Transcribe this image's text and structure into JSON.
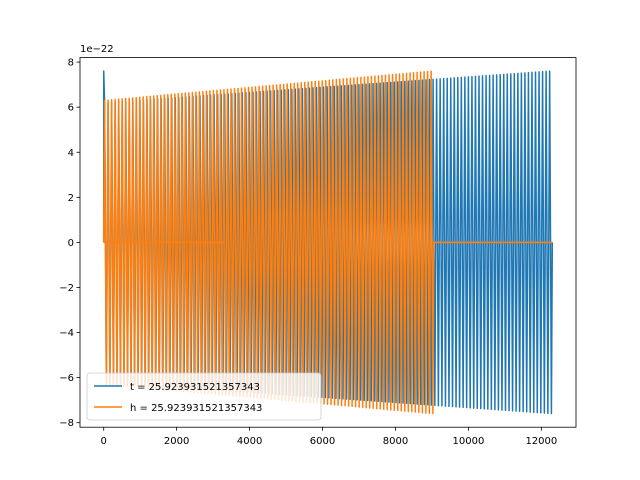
{
  "chart_data": {
    "type": "line",
    "title": "",
    "xlabel": "",
    "ylabel": "",
    "y_offset_label": "1e−22",
    "xlim": [
      -650,
      12950
    ],
    "ylim": [
      -8.2,
      8.2
    ],
    "y_scale_note": "values in units of 1e-22",
    "xticks": [
      0,
      2000,
      4000,
      6000,
      8000,
      10000,
      12000
    ],
    "xtick_labels": [
      "0",
      "2000",
      "4000",
      "6000",
      "8000",
      "10000",
      "12000"
    ],
    "yticks": [
      -8,
      -6,
      -4,
      -2,
      0,
      2,
      4,
      6,
      8
    ],
    "ytick_labels": [
      "−8",
      "−6",
      "−4",
      "−2",
      "0",
      "2",
      "4",
      "6",
      "8"
    ],
    "grid": false,
    "legend_position": "lower-left",
    "series": [
      {
        "name": "t = 25.923931521357343",
        "color": "#1f77b4",
        "x_range": [
          0,
          12300
        ],
        "baseline": 0.0,
        "cycles": 127,
        "amplitude_start": 6.2,
        "amplitude_end": 7.6,
        "start_spike": 7.6
      },
      {
        "name": "h = 25.923931521357343",
        "color": "#ff7f0e",
        "x_range": [
          0,
          9050
        ],
        "flat_until": 12300,
        "baseline": 0.0,
        "cycles": 94,
        "amplitude_start": 6.3,
        "amplitude_end": 7.6,
        "flat_segments": [
          [
            0,
            3300
          ],
          [
            9050,
            12300
          ]
        ]
      }
    ]
  }
}
